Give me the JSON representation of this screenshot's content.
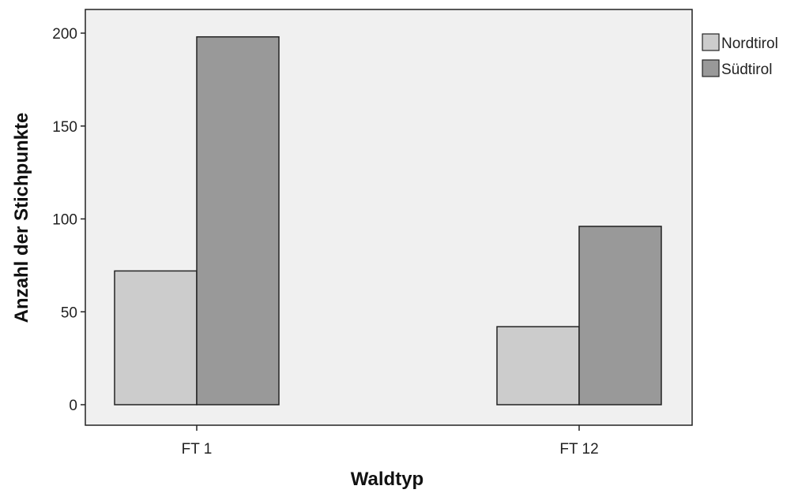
{
  "chart_data": {
    "type": "bar",
    "title": "",
    "xlabel": "Waldtyp",
    "ylabel": "Anzahl der Stichpunkte",
    "categories": [
      "FT 1",
      "FT 12"
    ],
    "series": [
      {
        "name": "Nordtirol",
        "values": [
          72,
          42
        ],
        "color": "#cccccc"
      },
      {
        "name": "Südtirol",
        "values": [
          198,
          96
        ],
        "color": "#999999"
      }
    ],
    "ylim": [
      0,
      200
    ],
    "yticks": [
      "0",
      "50",
      "100",
      "150",
      "200"
    ],
    "grid": false,
    "legend_position": "right",
    "plot_background": "#f0f0f0",
    "bar_edge_color": "#222222"
  }
}
